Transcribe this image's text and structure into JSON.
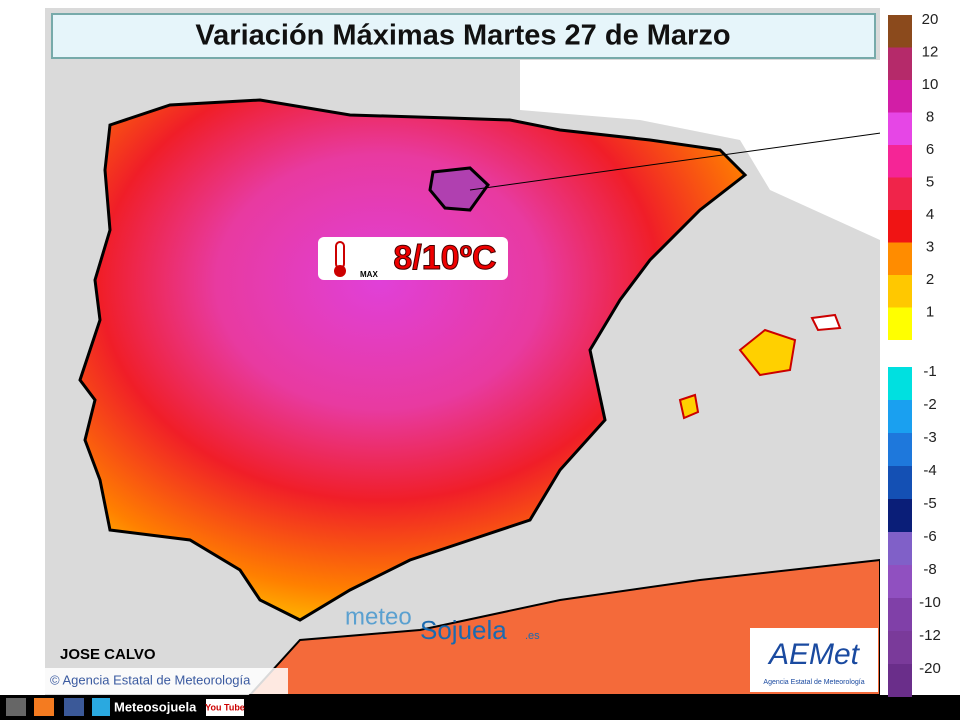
{
  "header": {
    "title": "Variación Máximas Martes 27 de Marzo"
  },
  "badge": {
    "label": "MAX",
    "text": "8/10ºC"
  },
  "author": "JOSE CALVO",
  "source": "© Agencia Estatal de Meteorología",
  "watermark": {
    "part1": "meteo",
    "part2": "Sojuela",
    "part3": ".es"
  },
  "logo": {
    "name": "AEMet",
    "subtitle": "Agencia Estatal de Meteorología"
  },
  "social": {
    "handle": "Meteosojuela",
    "youtube": "You Tube"
  },
  "legend": {
    "positive": [
      {
        "value": 20,
        "color": "#8b4a1c"
      },
      {
        "value": 12,
        "color": "#b52a6a"
      },
      {
        "value": 10,
        "color": "#d21ea6"
      },
      {
        "value": 8,
        "color": "#e646e6"
      },
      {
        "value": 6,
        "color": "#f52596"
      },
      {
        "value": 5,
        "color": "#f0244a"
      },
      {
        "value": 4,
        "color": "#f01414"
      },
      {
        "value": 3,
        "color": "#ff8c00"
      },
      {
        "value": 2,
        "color": "#ffc800"
      },
      {
        "value": 1,
        "color": "#ffff00"
      }
    ],
    "negative": [
      {
        "value": -1,
        "color": "#00e0e0"
      },
      {
        "value": -2,
        "color": "#1aa0f0"
      },
      {
        "value": -3,
        "color": "#1e78dc"
      },
      {
        "value": -4,
        "color": "#1450b4"
      },
      {
        "value": -5,
        "color": "#0a1e78"
      },
      {
        "value": -6,
        "color": "#8060c8"
      },
      {
        "value": -8,
        "color": "#9050c0"
      },
      {
        "value": -10,
        "color": "#8040a8"
      },
      {
        "value": -12,
        "color": "#7a3a9a"
      },
      {
        "value": -20,
        "color": "#6a2e8a"
      }
    ]
  }
}
